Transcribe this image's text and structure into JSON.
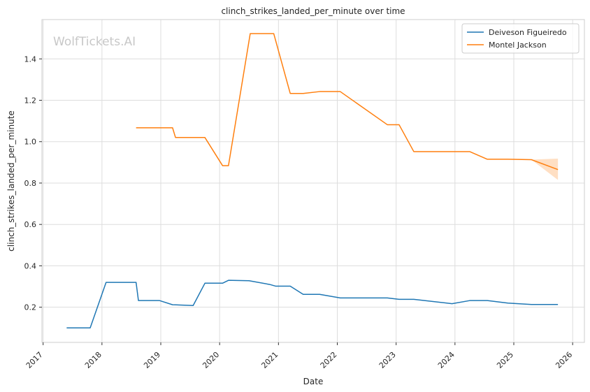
{
  "chart_data": {
    "type": "line",
    "title": "clinch_strikes_landed_per_minute over time",
    "xlabel": "Date",
    "ylabel": "clinch_strikes_landed_per_minute",
    "watermark": "WolfTickets.AI",
    "x_ticks": [
      "2017",
      "2018",
      "2019",
      "2020",
      "2021",
      "2022",
      "2023",
      "2024",
      "2025",
      "2026"
    ],
    "y_ticks": [
      "0.2",
      "0.4",
      "0.6",
      "0.8",
      "1.0",
      "1.2",
      "1.4"
    ],
    "xlim": [
      2016.98,
      2026.2
    ],
    "ylim": [
      0.03,
      1.59
    ],
    "grid": true,
    "legend_position": "top-right",
    "series": [
      {
        "name": "Deiveson Figueiredo",
        "color": "#1f77b4",
        "x": [
          2017.4,
          2017.8,
          2018.07,
          2018.58,
          2018.62,
          2018.98,
          2019.2,
          2019.55,
          2019.75,
          2020.05,
          2020.15,
          2020.5,
          2020.85,
          2020.95,
          2021.2,
          2021.42,
          2021.7,
          2022.05,
          2022.85,
          2023.05,
          2023.3,
          2023.95,
          2024.25,
          2024.55,
          2024.9,
          2025.3,
          2025.75
        ],
        "y": [
          0.1,
          0.1,
          0.32,
          0.32,
          0.232,
          0.232,
          0.212,
          0.208,
          0.316,
          0.316,
          0.33,
          0.328,
          0.31,
          0.302,
          0.302,
          0.262,
          0.262,
          0.245,
          0.245,
          0.238,
          0.238,
          0.217,
          0.232,
          0.232,
          0.22,
          0.213,
          0.213
        ]
      },
      {
        "name": "Montel Jackson",
        "color": "#ff7f0e",
        "x": [
          2018.58,
          2019.2,
          2019.25,
          2019.75,
          2020.05,
          2020.15,
          2020.52,
          2020.92,
          2021.2,
          2021.42,
          2021.7,
          2022.05,
          2022.85,
          2023.05,
          2023.3,
          2024.25,
          2024.55,
          2024.9,
          2025.3,
          2025.75
        ],
        "y": [
          1.067,
          1.067,
          1.02,
          1.02,
          0.884,
          0.884,
          1.522,
          1.522,
          1.233,
          1.233,
          1.242,
          1.242,
          1.082,
          1.082,
          0.952,
          0.952,
          0.915,
          0.915,
          0.913,
          0.865
        ],
        "band": {
          "x": [
            2025.3,
            2025.75
          ],
          "lower": [
            0.913,
            0.815
          ],
          "upper": [
            0.913,
            0.918
          ]
        }
      }
    ]
  }
}
